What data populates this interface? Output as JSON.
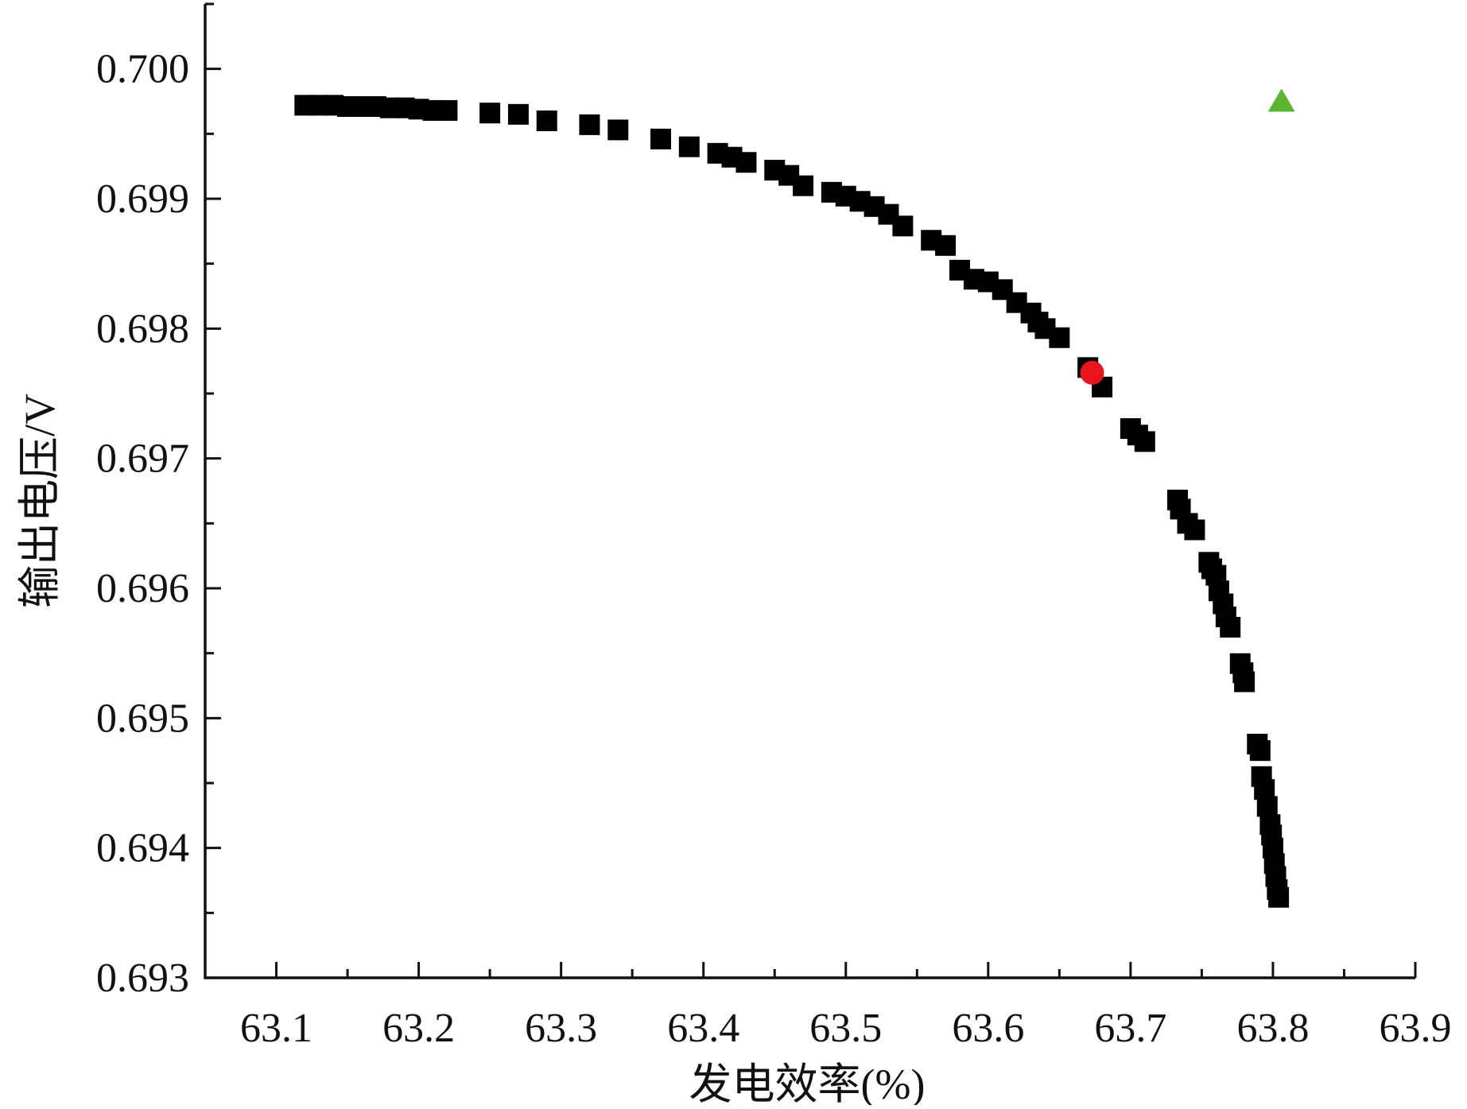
{
  "chart_data": {
    "type": "scatter",
    "title": "",
    "xlabel": "发电效率(%)",
    "ylabel": "输出电压/V",
    "xlim": [
      63.05,
      63.9
    ],
    "ylim": [
      0.693,
      0.7005
    ],
    "xticks": [
      "63.1",
      "63.2",
      "63.3",
      "63.4",
      "63.5",
      "63.6",
      "63.7",
      "63.8",
      "63.9"
    ],
    "yticks": [
      "0.693",
      "0.694",
      "0.695",
      "0.696",
      "0.697",
      "0.698",
      "0.699",
      "0.700"
    ],
    "grid": false,
    "legend": "none",
    "series": [
      {
        "marker": "square",
        "color": "#000000",
        "points": [
          [
            63.12,
            0.69972
          ],
          [
            63.13,
            0.69972
          ],
          [
            63.14,
            0.69972
          ],
          [
            63.15,
            0.69971
          ],
          [
            63.16,
            0.69971
          ],
          [
            63.17,
            0.69971
          ],
          [
            63.18,
            0.6997
          ],
          [
            63.19,
            0.6997
          ],
          [
            63.2,
            0.69969
          ],
          [
            63.21,
            0.69968
          ],
          [
            63.22,
            0.69968
          ],
          [
            63.25,
            0.69966
          ],
          [
            63.27,
            0.69965
          ],
          [
            63.29,
            0.6996
          ],
          [
            63.32,
            0.69957
          ],
          [
            63.34,
            0.69953
          ],
          [
            63.37,
            0.69946
          ],
          [
            63.39,
            0.6994
          ],
          [
            63.41,
            0.69935
          ],
          [
            63.42,
            0.69932
          ],
          [
            63.43,
            0.69928
          ],
          [
            63.45,
            0.69922
          ],
          [
            63.46,
            0.69918
          ],
          [
            63.47,
            0.6991
          ],
          [
            63.49,
            0.69905
          ],
          [
            63.5,
            0.69902
          ],
          [
            63.51,
            0.69898
          ],
          [
            63.52,
            0.69894
          ],
          [
            63.53,
            0.69888
          ],
          [
            63.54,
            0.69879
          ],
          [
            63.56,
            0.69868
          ],
          [
            63.57,
            0.69864
          ],
          [
            63.58,
            0.69845
          ],
          [
            63.59,
            0.69838
          ],
          [
            63.6,
            0.69836
          ],
          [
            63.61,
            0.6983
          ],
          [
            63.62,
            0.6982
          ],
          [
            63.63,
            0.69812
          ],
          [
            63.635,
            0.69805
          ],
          [
            63.64,
            0.698
          ],
          [
            63.65,
            0.69793
          ],
          [
            63.67,
            0.6977
          ],
          [
            63.68,
            0.69755
          ],
          [
            63.7,
            0.69723
          ],
          [
            63.705,
            0.69718
          ],
          [
            63.71,
            0.69713
          ],
          [
            63.733,
            0.69668
          ],
          [
            63.735,
            0.69661
          ],
          [
            63.74,
            0.6965
          ],
          [
            63.745,
            0.69645
          ],
          [
            63.755,
            0.6962
          ],
          [
            63.757,
            0.69615
          ],
          [
            63.76,
            0.6961
          ],
          [
            63.762,
            0.69598
          ],
          [
            63.765,
            0.69588
          ],
          [
            63.767,
            0.69578
          ],
          [
            63.77,
            0.6957
          ],
          [
            63.777,
            0.69542
          ],
          [
            63.779,
            0.69535
          ],
          [
            63.78,
            0.69528
          ],
          [
            63.789,
            0.6948
          ],
          [
            63.791,
            0.69475
          ],
          [
            63.792,
            0.69455
          ],
          [
            63.794,
            0.69445
          ],
          [
            63.796,
            0.69432
          ],
          [
            63.798,
            0.69418
          ],
          [
            63.799,
            0.6941
          ],
          [
            63.8,
            0.694
          ],
          [
            63.801,
            0.69388
          ],
          [
            63.802,
            0.69378
          ],
          [
            63.803,
            0.69368
          ],
          [
            63.804,
            0.69362
          ]
        ]
      },
      {
        "marker": "circle",
        "color": "#e8141c",
        "points": [
          [
            63.673,
            0.69766
          ]
        ]
      },
      {
        "marker": "triangle",
        "color": "#5cb531",
        "points": [
          [
            63.806,
            0.69975
          ]
        ]
      }
    ]
  }
}
